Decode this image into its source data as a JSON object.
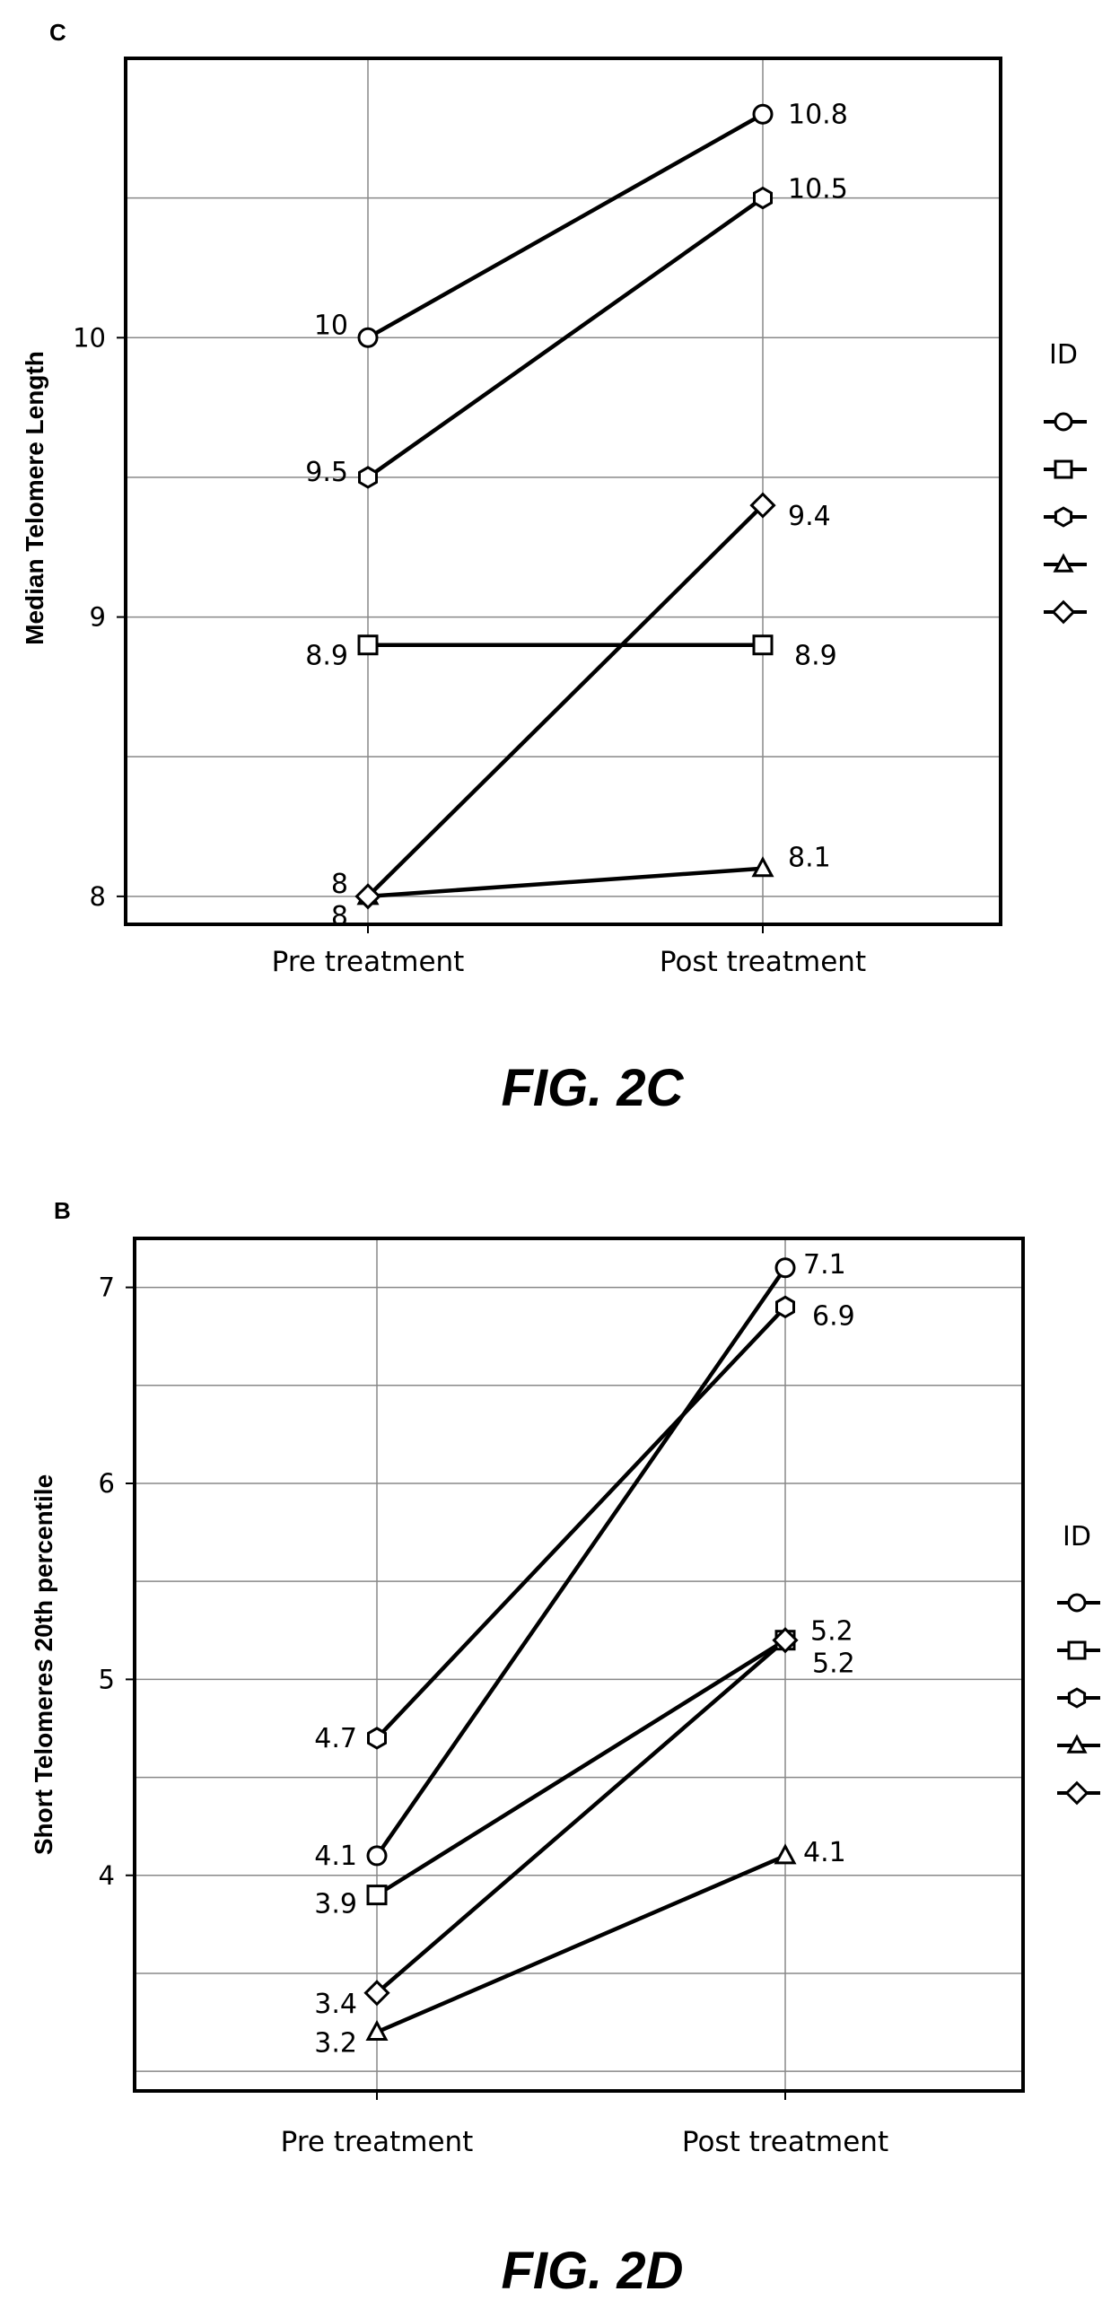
{
  "chart_data": [
    {
      "type": "line",
      "panel_letter": "C",
      "figure_caption": "FIG. 2C",
      "xlabel": "",
      "ylabel": "Median Telomere Length",
      "categories": [
        "Pre treatment",
        "Post treatment"
      ],
      "ylim": [
        7.9,
        11.0
      ],
      "yticks": [
        8,
        9,
        10
      ],
      "grid": true,
      "legend": {
        "title": "ID",
        "position": "right"
      },
      "series": [
        {
          "marker": "circle",
          "values": [
            10,
            10.8
          ],
          "labels": [
            "10",
            "10.8"
          ]
        },
        {
          "marker": "square",
          "values": [
            8.9,
            8.9
          ],
          "labels": [
            "8.9",
            "8.9"
          ]
        },
        {
          "marker": "hexagon",
          "values": [
            9.5,
            10.5
          ],
          "labels": [
            "9.5",
            "10.5"
          ]
        },
        {
          "marker": "triangle",
          "values": [
            8.0,
            8.1
          ],
          "labels": [
            "8",
            "8.1"
          ]
        },
        {
          "marker": "diamond",
          "values": [
            8.0,
            9.4
          ],
          "labels": [
            "8",
            "9.4"
          ]
        }
      ]
    },
    {
      "type": "line",
      "panel_letter": "B",
      "figure_caption": "FIG. 2D",
      "xlabel": "",
      "ylabel": "Short Telomeres 20th percentile",
      "categories": [
        "Pre treatment",
        "Post treatment"
      ],
      "ylim": [
        2.9,
        7.25
      ],
      "yticks": [
        4,
        5,
        6,
        7
      ],
      "grid": true,
      "legend": {
        "title": "ID",
        "position": "right"
      },
      "series": [
        {
          "marker": "circle",
          "values": [
            4.1,
            7.1
          ],
          "labels": [
            "4.1",
            "7.1"
          ]
        },
        {
          "marker": "square",
          "values": [
            3.9,
            5.2
          ],
          "labels": [
            "3.9",
            "5.2"
          ]
        },
        {
          "marker": "hexagon",
          "values": [
            4.7,
            6.9
          ],
          "labels": [
            "4.7",
            "6.9"
          ]
        },
        {
          "marker": "triangle",
          "values": [
            3.2,
            4.1
          ],
          "labels": [
            "3.2",
            "4.1"
          ]
        },
        {
          "marker": "diamond",
          "values": [
            3.4,
            5.2
          ],
          "labels": [
            "3.4",
            "5.2"
          ]
        }
      ]
    }
  ]
}
